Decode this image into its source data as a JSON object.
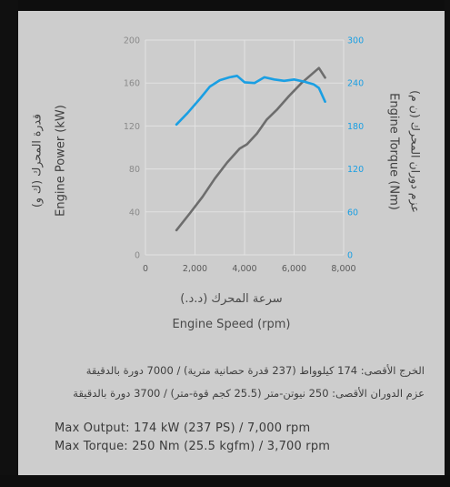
{
  "chart_data": {
    "type": "line",
    "x_axis": {
      "label_ar": "سرعة المحرك (د.د.)",
      "label_en": "Engine Speed (rpm)",
      "range": [
        0,
        8000
      ],
      "ticks": [
        0,
        2000,
        4000,
        6000,
        8000
      ],
      "tick_labels": [
        "0",
        "2,000",
        "4,000",
        "6,000",
        "8,000"
      ]
    },
    "y_left": {
      "label_ar": "قدرة المحرك (ك و)",
      "label_en": "Engine Power (kW)",
      "range": [
        0,
        200
      ],
      "ticks": [
        0,
        40,
        80,
        120,
        160,
        200
      ],
      "tick_labels": [
        "0",
        "40",
        "80",
        "120",
        "160",
        "200"
      ]
    },
    "y_right": {
      "label_ar": "عزم دوران المحرك (ن م)",
      "label_en": "Engine Torque (Nm)",
      "range": [
        0,
        300
      ],
      "ticks": [
        0,
        60,
        120,
        180,
        240,
        300
      ],
      "tick_labels": [
        "0",
        "60",
        "120",
        "180",
        "240",
        "300"
      ]
    },
    "grid": true,
    "series": [
      {
        "axis": "left",
        "color": "#6d6d6d",
        "x": [
          1250,
          1800,
          2300,
          2800,
          3300,
          3800,
          4100,
          4500,
          4900,
          5300,
          5800,
          6300,
          6700,
          7000,
          7250
        ],
        "values": [
          23,
          39,
          54,
          71,
          86,
          99,
          103,
          113,
          126,
          135,
          148,
          160,
          168,
          174,
          165
        ]
      },
      {
        "axis": "right",
        "color": "#1a9fe3",
        "x": [
          1250,
          1700,
          2200,
          2600,
          3000,
          3400,
          3700,
          4000,
          4400,
          4800,
          5200,
          5600,
          6000,
          6400,
          6800,
          7000,
          7250
        ],
        "values": [
          182,
          198,
          218,
          235,
          244,
          248,
          250,
          241,
          240,
          248,
          245,
          243,
          245,
          242,
          238,
          233,
          214
        ]
      }
    ]
  },
  "notes": {
    "ar_line1": "الخرج الأقصى: 174 كيلوواط (237 قدرة حصانية مترية) / 7000 دورة بالدقيقة",
    "ar_line2": "عزم الدوران الأقصى: 250 نيوتن-متر (25.5 كجم قوة-متر) / 3700 دورة بالدقيقة",
    "en_line1": "Max Output: 174 kW (237 PS) / 7,000 rpm",
    "en_line2": "Max Torque: 250 Nm (25.5 kgfm) / 3,700 rpm"
  },
  "colors": {
    "panel": "#cdcdcd",
    "power_line": "#6d6d6d",
    "torque_line": "#1a9fe3"
  }
}
